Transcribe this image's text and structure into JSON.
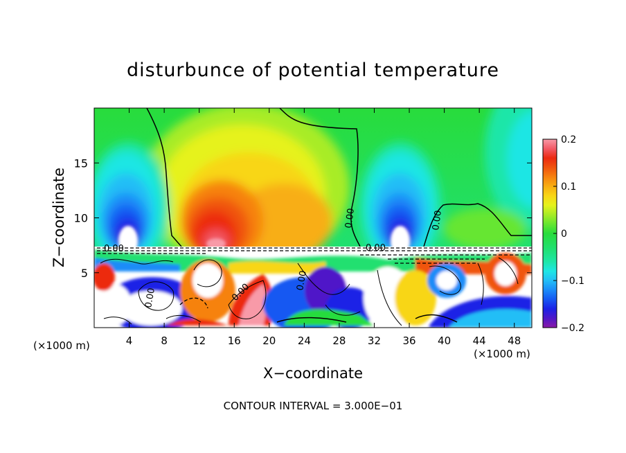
{
  "chart_data": {
    "type": "heatmap",
    "title": "disturbunce of potential temperature",
    "xlabel": "X−coordinate",
    "ylabel": "Z−coordinate",
    "x_unit_label": "(×1000 m)",
    "x_unit_label_right": "(×1000 m)",
    "xlim": [
      0,
      50
    ],
    "ylim": [
      0,
      20
    ],
    "x_ticks": [
      "4",
      "8",
      "12",
      "16",
      "20",
      "24",
      "28",
      "32",
      "36",
      "40",
      "44",
      "48"
    ],
    "x_tick_values": [
      4,
      8,
      12,
      16,
      20,
      24,
      28,
      32,
      36,
      40,
      44,
      48
    ],
    "y_ticks": [
      "5",
      "10",
      "15"
    ],
    "y_tick_values": [
      5,
      10,
      15
    ],
    "colorbar": {
      "range": [
        -0.2,
        0.2
      ],
      "ticks": [
        "0.2",
        "0.1",
        "0",
        "−0.1",
        "−0.2"
      ],
      "tick_values": [
        0.2,
        0.1,
        0,
        -0.1,
        -0.2
      ],
      "colors": [
        "#8a1aa8",
        "#4f18c8",
        "#1b22e6",
        "#1658f2",
        "#1b8cf8",
        "#22bef6",
        "#1ee6e4",
        "#1ee6a8",
        "#20e070",
        "#28dc3c",
        "#66e630",
        "#a8ec26",
        "#e6f21c",
        "#f8d616",
        "#f8ae12",
        "#f68210",
        "#f0540e",
        "#ec2a10",
        "#f25a66",
        "#f89aa8"
      ]
    },
    "contour_labels": [
      "0.00",
      "0.00",
      "0.00",
      "0.00",
      "0.00",
      "0.00",
      "0.00"
    ],
    "features": [
      {
        "x": 4,
        "z": 9.5,
        "anomaly": -0.2
      },
      {
        "x": 14,
        "z": 10.5,
        "anomaly": 0.18
      },
      {
        "x": 23,
        "z": 10.5,
        "anomaly": 0.12
      },
      {
        "x": 34.5,
        "z": 9.5,
        "anomaly": -0.2
      },
      {
        "x": 44,
        "z": 10.5,
        "anomaly": 0.02
      }
    ],
    "grid": false,
    "legend": "colorbar-right",
    "contour_interval_text": "CONTOUR INTERVAL = 3.000E−01"
  }
}
